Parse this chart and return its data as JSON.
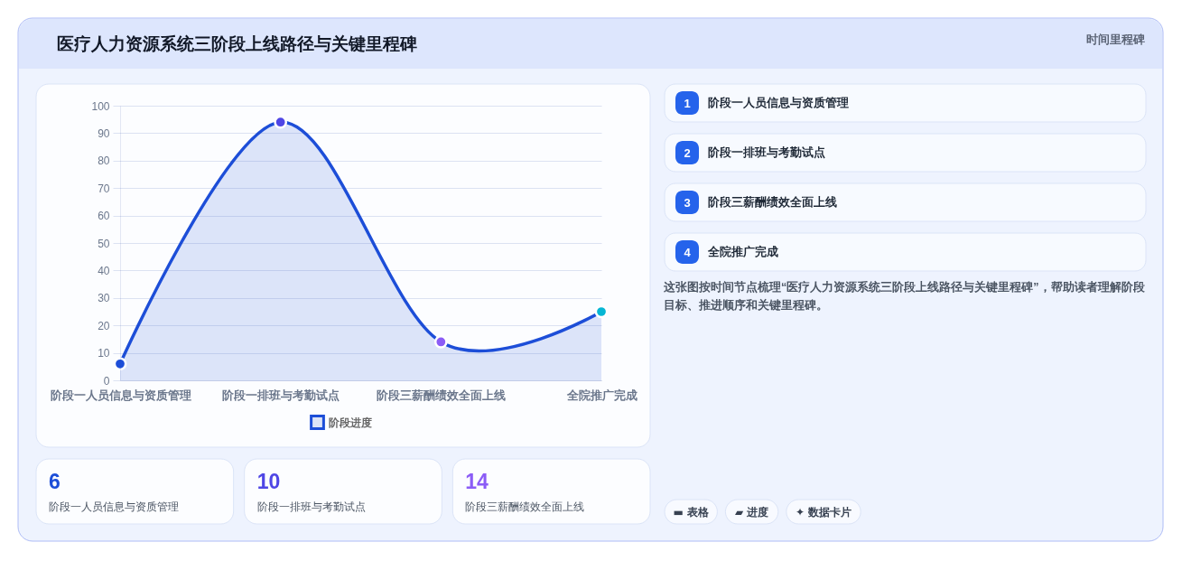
{
  "chart_data": {
    "type": "area",
    "title": "医疗人力资源系统三阶段上线路径与关键里程碑",
    "subtitle": "时间里程碑",
    "categories": [
      "阶段一人员信息与资质管理",
      "阶段一排班与考勤试点",
      "阶段三薪酬绩效全面上线",
      "全院推广完成"
    ],
    "series": [
      {
        "name": "阶段进度",
        "color": "#1d4ed8",
        "colors": [
          "#1d4ed8",
          "#4f46e5",
          "#8b5cf6",
          "#06b6d4"
        ],
        "values": [
          6,
          94,
          14,
          25
        ]
      }
    ],
    "ylim": [
      0,
      100
    ],
    "yticks": [
      0,
      10,
      20,
      30,
      40,
      50,
      60,
      70,
      80,
      90,
      100
    ],
    "grid": "y",
    "legend": "bottom",
    "marker": "circle",
    "line_style": "solid",
    "annotations": [
      "1",
      "阶段一人员信息与资质管理",
      "2",
      "阶段一排班与考勤试点",
      "3",
      "阶段三薪酬绩效全面上线",
      "4",
      "全院推广完成",
      "这张图按时间节点梳理“医疗人力资源系统三阶段上线路径与关键里程碑”，帮助读者理解阶段目标、推进顺序和关键里程碑。",
      "6",
      "阶段一人员信息与资质管理",
      "10",
      "阶段一排班与考勤试点",
      "14",
      "阶段三薪酬绩效全面上线",
      "▬ 表格",
      "▰ 进度",
      "✦ 数据卡片"
    ]
  }
}
